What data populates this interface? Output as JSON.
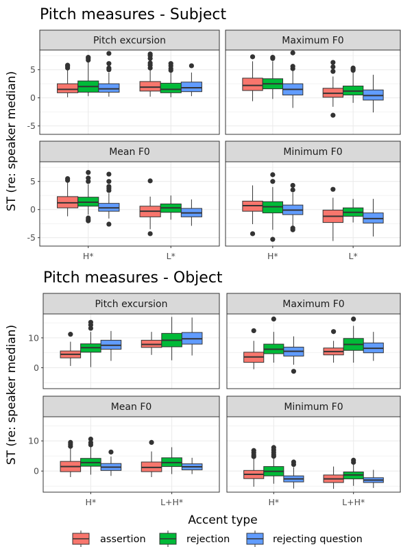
{
  "chart_data": [
    {
      "type": "box",
      "title": "Pitch measures - Subject",
      "ylabel": "ST (re: speaker median)",
      "ylim": [
        -6.5,
        8.5
      ],
      "yticks": [
        -5,
        0,
        5
      ],
      "series_names": [
        "assertion",
        "rejection",
        "rejecting question"
      ],
      "panels": [
        {
          "name": "Pitch excursion",
          "groups": [
            {
              "category": "H*",
              "boxes": [
                {
                  "series": "assertion",
                  "q1": 0.9,
                  "median": 1.5,
                  "q3": 2.5,
                  "whisker_low": 0.1,
                  "whisker_high": 5.0,
                  "outliers": [
                    5.3,
                    5.6,
                    5.8
                  ]
                },
                {
                  "series": "rejection",
                  "q1": 1.0,
                  "median": 2.0,
                  "q3": 3.0,
                  "whisker_low": 0.3,
                  "whisker_high": 6.3,
                  "outliers": [
                    6.7,
                    7.0,
                    7.2
                  ]
                },
                {
                  "series": "rejecting question",
                  "q1": 1.0,
                  "median": 1.6,
                  "q3": 2.5,
                  "whisker_low": 0.2,
                  "whisker_high": 4.5,
                  "outliers": [
                    5.0,
                    5.3,
                    6.1,
                    7.9
                  ]
                }
              ]
            },
            {
              "category": "L*",
              "boxes": [
                {
                  "series": "assertion",
                  "q1": 1.2,
                  "median": 1.9,
                  "q3": 2.9,
                  "whisker_low": 0.2,
                  "whisker_high": 5.0,
                  "outliers": [
                    5.3,
                    5.8,
                    6.2,
                    7.0,
                    7.5,
                    7.8
                  ]
                },
                {
                  "series": "rejection",
                  "q1": 0.9,
                  "median": 1.5,
                  "q3": 2.6,
                  "whisker_low": 0.1,
                  "whisker_high": 4.5,
                  "outliers": [
                    4.9,
                    5.2,
                    5.7,
                    6.1
                  ]
                },
                {
                  "series": "rejecting question",
                  "q1": 1.1,
                  "median": 1.8,
                  "q3": 2.8,
                  "whisker_low": 0.3,
                  "whisker_high": 4.5,
                  "outliers": [
                    5.7
                  ]
                }
              ]
            }
          ]
        },
        {
          "name": "Maximum F0",
          "groups": [
            {
              "category": "H*",
              "boxes": [
                {
                  "series": "assertion",
                  "q1": 1.3,
                  "median": 2.2,
                  "q3": 3.5,
                  "whisker_low": -0.6,
                  "whisker_high": 6.5,
                  "outliers": [
                    7.3
                  ]
                },
                {
                  "series": "rejection",
                  "q1": 1.6,
                  "median": 2.5,
                  "q3": 3.4,
                  "whisker_low": -0.2,
                  "whisker_high": 6.5,
                  "outliers": [
                    7.0,
                    7.2
                  ]
                },
                {
                  "series": "rejecting question",
                  "q1": 0.5,
                  "median": 1.5,
                  "q3": 2.5,
                  "whisker_low": -1.8,
                  "whisker_high": 5.0,
                  "outliers": [
                    5.2,
                    5.6,
                    8.0
                  ]
                }
              ]
            },
            {
              "category": "L*",
              "boxes": [
                {
                  "series": "assertion",
                  "q1": 0.1,
                  "median": 0.8,
                  "q3": 1.7,
                  "whisker_low": -1.6,
                  "whisker_high": 3.8,
                  "outliers": [
                    -3.1,
                    4.7,
                    5.5,
                    6.3
                  ]
                },
                {
                  "series": "rejection",
                  "q1": 0.5,
                  "median": 1.2,
                  "q3": 2.1,
                  "whisker_low": -0.9,
                  "whisker_high": 4.5,
                  "outliers": [
                    4.9,
                    5.1,
                    5.3
                  ]
                },
                {
                  "series": "rejecting question",
                  "q1": -0.4,
                  "median": 0.4,
                  "q3": 1.4,
                  "whisker_low": -2.6,
                  "whisker_high": 4.1,
                  "outliers": []
                }
              ]
            }
          ]
        },
        {
          "name": "Mean F0",
          "groups": [
            {
              "category": "H*",
              "boxes": [
                {
                  "series": "assertion",
                  "q1": 0.3,
                  "median": 1.2,
                  "q3": 2.3,
                  "whisker_low": -1.2,
                  "whisker_high": 5.0,
                  "outliers": [
                    5.2,
                    5.5
                  ]
                },
                {
                  "series": "rejection",
                  "q1": 0.6,
                  "median": 1.3,
                  "q3": 2.2,
                  "whisker_low": -0.9,
                  "whisker_high": 4.5,
                  "outliers": [
                    -1.5,
                    -1.8,
                    -2.0,
                    5.0,
                    5.6,
                    6.6
                  ]
                },
                {
                  "series": "rejecting question",
                  "q1": -0.3,
                  "median": 0.3,
                  "q3": 1.1,
                  "whisker_low": -1.6,
                  "whisker_high": 2.9,
                  "outliers": [
                    -2.6,
                    3.4,
                    3.8,
                    4.1,
                    5.0,
                    6.3
                  ]
                }
              ]
            },
            {
              "category": "L*",
              "boxes": [
                {
                  "series": "assertion",
                  "q1": -1.3,
                  "median": -0.3,
                  "q3": 0.6,
                  "whisker_low": -3.5,
                  "whisker_high": 2.3,
                  "outliers": [
                    -4.3,
                    5.1
                  ]
                },
                {
                  "series": "rejection",
                  "q1": -0.5,
                  "median": 0.3,
                  "q3": 1.0,
                  "whisker_low": -1.8,
                  "whisker_high": 2.5,
                  "outliers": []
                },
                {
                  "series": "rejecting question",
                  "q1": -1.3,
                  "median": -0.6,
                  "q3": 0.2,
                  "whisker_low": -2.9,
                  "whisker_high": 1.8,
                  "outliers": []
                }
              ]
            }
          ]
        },
        {
          "name": "Minimum F0",
          "groups": [
            {
              "category": "H*",
              "boxes": [
                {
                  "series": "assertion",
                  "q1": -0.3,
                  "median": 0.7,
                  "q3": 1.5,
                  "whisker_low": -2.6,
                  "whisker_high": 4.3,
                  "outliers": [
                    -4.3
                  ]
                },
                {
                  "series": "rejection",
                  "q1": -0.6,
                  "median": 0.5,
                  "q3": 1.4,
                  "whisker_low": -3.6,
                  "whisker_high": 4.0,
                  "outliers": [
                    -5.3,
                    5.0,
                    6.2
                  ]
                },
                {
                  "series": "rejecting question",
                  "q1": -0.9,
                  "median": -0.1,
                  "q3": 0.8,
                  "whisker_low": -3.0,
                  "whisker_high": 3.0,
                  "outliers": [
                    -3.3,
                    -3.6,
                    3.5,
                    4.3
                  ]
                }
              ]
            },
            {
              "category": "L*",
              "boxes": [
                {
                  "series": "assertion",
                  "q1": -2.3,
                  "median": -1.2,
                  "q3": -0.1,
                  "whisker_low": -5.6,
                  "whisker_high": 2.1,
                  "outliers": [
                    3.6
                  ]
                },
                {
                  "series": "rejection",
                  "q1": -1.2,
                  "median": -0.5,
                  "q3": 0.3,
                  "whisker_low": -2.3,
                  "whisker_high": 1.9,
                  "outliers": []
                },
                {
                  "series": "rejecting question",
                  "q1": -2.4,
                  "median": -1.6,
                  "q3": -0.6,
                  "whisker_low": -4.8,
                  "whisker_high": 1.9,
                  "outliers": []
                }
              ]
            }
          ]
        }
      ]
    },
    {
      "type": "box",
      "title": "Pitch measures - Object",
      "ylabel": "ST (re: speaker median)",
      "ylim": [
        -7,
        18
      ],
      "yticks": [
        0,
        10
      ],
      "series_names": [
        "assertion",
        "rejection",
        "rejecting question"
      ],
      "panels": [
        {
          "name": "Pitch excursion",
          "groups": [
            {
              "category": "H*",
              "boxes": [
                {
                  "series": "assertion",
                  "q1": 3.3,
                  "median": 4.5,
                  "q3": 5.6,
                  "whisker_low": 0.6,
                  "whisker_high": 8.7,
                  "outliers": [
                    11.2
                  ]
                },
                {
                  "series": "rejection",
                  "q1": 5.2,
                  "median": 6.7,
                  "q3": 8.0,
                  "whisker_low": 0.2,
                  "whisker_high": 12.0,
                  "outliers": [
                    13.2,
                    14.3,
                    15.2
                  ]
                },
                {
                  "series": "rejecting question",
                  "q1": 6.2,
                  "median": 7.5,
                  "q3": 9.2,
                  "whisker_low": 2.3,
                  "whisker_high": 12.3,
                  "outliers": []
                }
              ]
            },
            {
              "category": "L+H*",
              "boxes": [
                {
                  "series": "assertion",
                  "q1": 6.8,
                  "median": 7.8,
                  "q3": 9.2,
                  "whisker_low": 4.3,
                  "whisker_high": 12.0,
                  "outliers": []
                },
                {
                  "series": "rejection",
                  "q1": 7.0,
                  "median": 9.2,
                  "q3": 11.5,
                  "whisker_low": 2.5,
                  "whisker_high": 17.0,
                  "outliers": []
                },
                {
                  "series": "rejecting question",
                  "q1": 7.9,
                  "median": 9.7,
                  "q3": 11.8,
                  "whisker_low": 4.1,
                  "whisker_high": 16.8,
                  "outliers": []
                }
              ]
            }
          ]
        },
        {
          "name": "Maximum F0",
          "groups": [
            {
              "category": "H*",
              "boxes": [
                {
                  "series": "assertion",
                  "q1": 1.8,
                  "median": 3.6,
                  "q3": 5.2,
                  "whisker_low": -0.5,
                  "whisker_high": 9.0,
                  "outliers": [
                    12.4
                  ]
                },
                {
                  "series": "rejection",
                  "q1": 4.7,
                  "median": 6.2,
                  "q3": 7.9,
                  "whisker_low": 1.7,
                  "whisker_high": 12.0,
                  "outliers": [
                    16.3
                  ]
                },
                {
                  "series": "rejecting question",
                  "q1": 3.9,
                  "median": 5.5,
                  "q3": 6.9,
                  "whisker_low": 1.0,
                  "whisker_high": 10.5,
                  "outliers": [
                    -1.2
                  ]
                }
              ]
            },
            {
              "category": "L+H*",
              "boxes": [
                {
                  "series": "assertion",
                  "q1": 4.3,
                  "median": 5.4,
                  "q3": 6.6,
                  "whisker_low": 1.7,
                  "whisker_high": 9.0,
                  "outliers": [
                    12.1
                  ]
                },
                {
                  "series": "rejection",
                  "q1": 5.8,
                  "median": 7.8,
                  "q3": 9.8,
                  "whisker_low": 1.7,
                  "whisker_high": 14.0,
                  "outliers": [
                    16.3
                  ]
                },
                {
                  "series": "rejecting question",
                  "q1": 5.0,
                  "median": 6.5,
                  "q3": 8.3,
                  "whisker_low": 2.3,
                  "whisker_high": 12.0,
                  "outliers": []
                }
              ]
            }
          ]
        },
        {
          "name": "Mean F0",
          "groups": [
            {
              "category": "H*",
              "boxes": [
                {
                  "series": "assertion",
                  "q1": -0.2,
                  "median": 1.5,
                  "q3": 3.2,
                  "whisker_low": -2.0,
                  "whisker_high": 7.5,
                  "outliers": [
                    8.2,
                    8.9,
                    9.5
                  ]
                },
                {
                  "series": "rejection",
                  "q1": 1.6,
                  "median": 2.8,
                  "q3": 4.2,
                  "whisker_low": -1.2,
                  "whisker_high": 8.0,
                  "outliers": [
                    8.7,
                    9.4,
                    10.6
                  ]
                },
                {
                  "series": "rejecting question",
                  "q1": 0.2,
                  "median": 1.3,
                  "q3": 2.5,
                  "whisker_low": -1.6,
                  "whisker_high": 4.8,
                  "outliers": [
                    6.3
                  ]
                }
              ]
            },
            {
              "category": "L+H*",
              "boxes": [
                {
                  "series": "assertion",
                  "q1": -0.2,
                  "median": 1.2,
                  "q3": 3.0,
                  "whisker_low": -2.0,
                  "whisker_high": 6.5,
                  "outliers": [
                    9.5
                  ]
                },
                {
                  "series": "rejection",
                  "q1": 1.5,
                  "median": 2.8,
                  "q3": 4.4,
                  "whisker_low": -1.0,
                  "whisker_high": 7.9,
                  "outliers": []
                },
                {
                  "series": "rejecting question",
                  "q1": 0.4,
                  "median": 1.4,
                  "q3": 2.4,
                  "whisker_low": -1.0,
                  "whisker_high": 4.4,
                  "outliers": []
                }
              ]
            }
          ]
        },
        {
          "name": "Minimum F0",
          "groups": [
            {
              "category": "H*",
              "boxes": [
                {
                  "series": "assertion",
                  "q1": -2.5,
                  "median": -1.1,
                  "q3": 0.2,
                  "whisker_low": -5.2,
                  "whisker_high": 4.1,
                  "outliers": [
                    4.8,
                    5.3,
                    6.1,
                    6.8
                  ]
                },
                {
                  "series": "rejection",
                  "q1": -1.6,
                  "median": -0.1,
                  "q3": 1.5,
                  "whisker_low": -4.2,
                  "whisker_high": 4.1,
                  "outliers": [
                    4.9,
                    5.5,
                    6.2,
                    7.0,
                    7.8
                  ]
                },
                {
                  "series": "rejecting question",
                  "q1": -3.6,
                  "median": -2.6,
                  "q3": -1.6,
                  "whisker_low": -5.8,
                  "whisker_high": 1.3,
                  "outliers": [
                    2.2,
                    3.0
                  ]
                }
              ]
            },
            {
              "category": "L+H*",
              "boxes": [
                {
                  "series": "assertion",
                  "q1": -3.8,
                  "median": -2.6,
                  "q3": -1.3,
                  "whisker_low": -5.9,
                  "whisker_high": 1.5,
                  "outliers": []
                },
                {
                  "series": "rejection",
                  "q1": -2.6,
                  "median": -1.3,
                  "q3": -0.3,
                  "whisker_low": -4.9,
                  "whisker_high": 2.1,
                  "outliers": [
                    2.9,
                    3.6
                  ]
                },
                {
                  "series": "rejecting question",
                  "q1": -3.8,
                  "median": -3.0,
                  "q3": -2.2,
                  "whisker_low": -5.6,
                  "whisker_high": 0.4,
                  "outliers": []
                }
              ]
            }
          ]
        }
      ]
    }
  ],
  "x_axis_label": "Accent type",
  "legend": {
    "items": [
      {
        "label": "assertion",
        "color": "#F8766D"
      },
      {
        "label": "rejection",
        "color": "#00BA38"
      },
      {
        "label": "rejecting question",
        "color": "#619CFF"
      }
    ]
  }
}
